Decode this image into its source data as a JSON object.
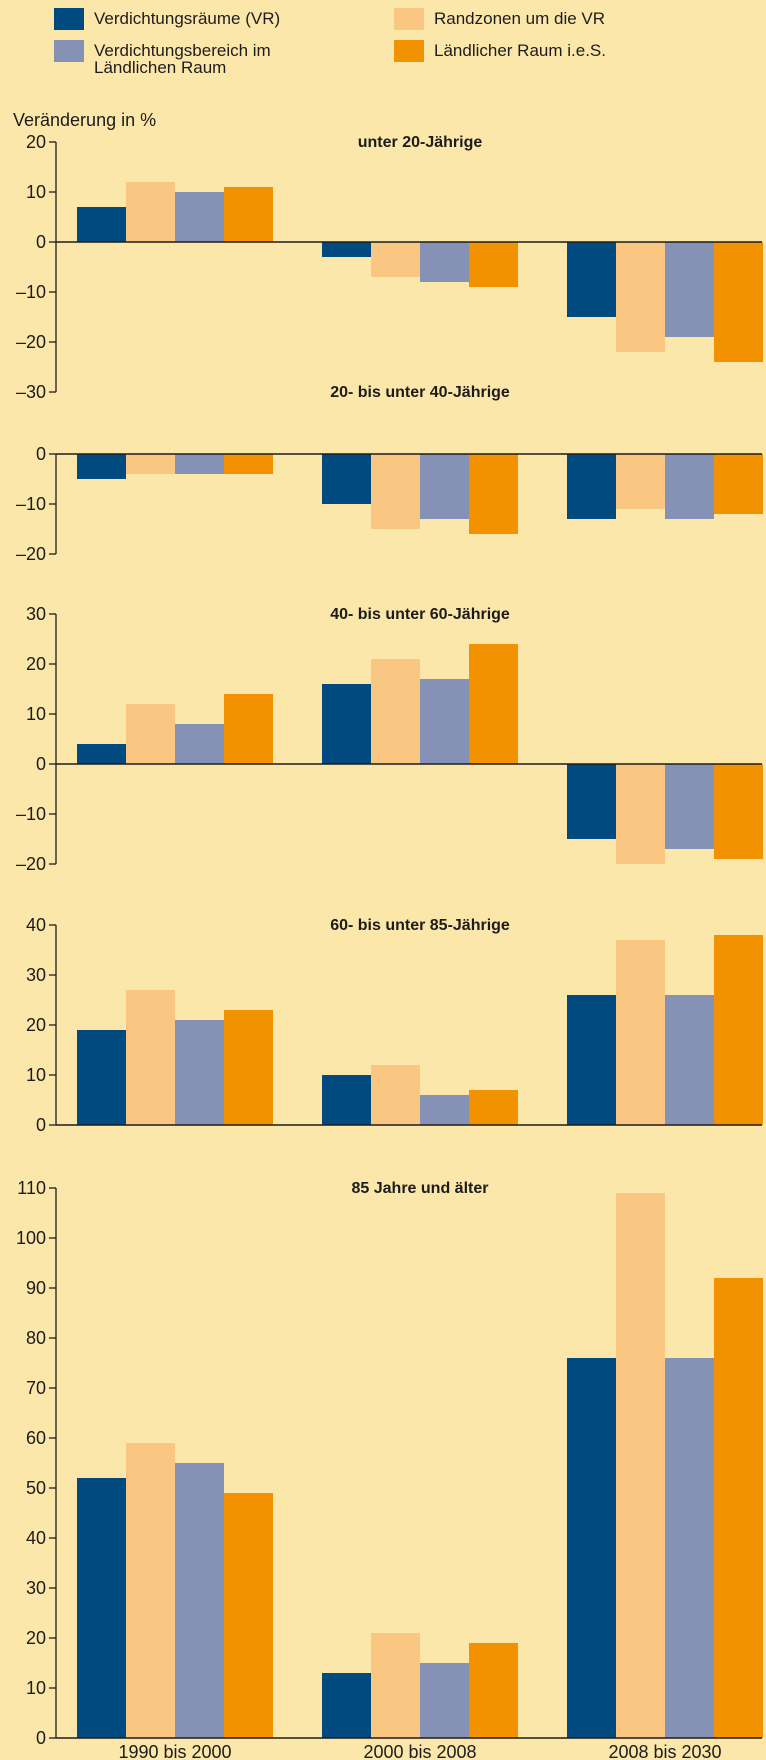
{
  "legend": [
    {
      "label": "Verdichtungsräume (VR)",
      "color": "#004a80"
    },
    {
      "label": "Randzonen um die VR",
      "color": "#fac783"
    },
    {
      "label": "Verdichtungsbereich im Ländlichen Raum",
      "color": "#8592b6"
    },
    {
      "label": "Ländlicher Raum i.e.S.",
      "color": "#f29200"
    }
  ],
  "ylabel": "Veränderung in %",
  "chart_data": [
    {
      "type": "bar",
      "title": "unter 20-Jährige",
      "categories": [
        "1990 bis 2000",
        "2000 bis 2008",
        "2008 bis 2030"
      ],
      "series": [
        {
          "name": "Verdichtungsräume (VR)",
          "values": [
            7,
            -3,
            -15
          ]
        },
        {
          "name": "Randzonen um die VR",
          "values": [
            12,
            -7,
            -22
          ]
        },
        {
          "name": "Verdichtungsbereich im Ländlichen Raum",
          "values": [
            10,
            -8,
            -19
          ]
        },
        {
          "name": "Ländlicher Raum i.e.S.",
          "values": [
            11,
            -9,
            -24
          ]
        }
      ],
      "ylabel": "Veränderung in %",
      "ylim": [
        -30,
        20
      ],
      "yticks": [
        20,
        10,
        0,
        -10,
        -20,
        -30
      ],
      "ytick_labels": [
        "20",
        "10",
        "0",
        "–10",
        "–20",
        "–30"
      ]
    },
    {
      "type": "bar",
      "title": "20- bis unter 40-Jährige",
      "categories": [
        "1990 bis 2000",
        "2000 bis 2008",
        "2008 bis 2030"
      ],
      "series": [
        {
          "name": "Verdichtungsräume (VR)",
          "values": [
            -5,
            -10,
            -13
          ]
        },
        {
          "name": "Randzonen um die VR",
          "values": [
            -4,
            -15,
            -11
          ]
        },
        {
          "name": "Verdichtungsbereich im Ländlichen Raum",
          "values": [
            -4,
            -13,
            -13
          ]
        },
        {
          "name": "Ländlicher Raum i.e.S.",
          "values": [
            -4,
            -16,
            -12
          ]
        }
      ],
      "ylim": [
        -20,
        0
      ],
      "yticks": [
        0,
        -10,
        -20
      ],
      "ytick_labels": [
        "0",
        "–10",
        "–20"
      ]
    },
    {
      "type": "bar",
      "title": "40- bis unter 60-Jährige",
      "categories": [
        "1990 bis 2000",
        "2000 bis 2008",
        "2008 bis 2030"
      ],
      "series": [
        {
          "name": "Verdichtungsräume (VR)",
          "values": [
            4,
            16,
            -15
          ]
        },
        {
          "name": "Randzonen um die VR",
          "values": [
            12,
            21,
            -20
          ]
        },
        {
          "name": "Verdichtungsbereich im Ländlichen Raum",
          "values": [
            8,
            17,
            -17
          ]
        },
        {
          "name": "Ländlicher Raum i.e.S.",
          "values": [
            14,
            24,
            -19
          ]
        }
      ],
      "ylim": [
        -20,
        30
      ],
      "yticks": [
        30,
        20,
        10,
        0,
        -10,
        -20
      ],
      "ytick_labels": [
        "30",
        "20",
        "10",
        "0",
        "–10",
        "–20"
      ]
    },
    {
      "type": "bar",
      "title": "60- bis unter 85-Jährige",
      "categories": [
        "1990 bis 2000",
        "2000 bis 2008",
        "2008 bis 2030"
      ],
      "series": [
        {
          "name": "Verdichtungsräume (VR)",
          "values": [
            19,
            10,
            26
          ]
        },
        {
          "name": "Randzonen um die VR",
          "values": [
            27,
            12,
            37
          ]
        },
        {
          "name": "Verdichtungsbereich im Ländlichen Raum",
          "values": [
            21,
            6,
            26
          ]
        },
        {
          "name": "Ländlicher Raum i.e.S.",
          "values": [
            23,
            7,
            38
          ]
        }
      ],
      "ylim": [
        0,
        40
      ],
      "yticks": [
        40,
        30,
        20,
        10,
        0
      ],
      "ytick_labels": [
        "40",
        "30",
        "20",
        "10",
        "0"
      ]
    },
    {
      "type": "bar",
      "title": "85 Jahre und älter",
      "categories": [
        "1990 bis 2000",
        "2000 bis 2008",
        "2008 bis 2030"
      ],
      "series": [
        {
          "name": "Verdichtungsräume (VR)",
          "values": [
            52,
            13,
            76
          ]
        },
        {
          "name": "Randzonen um die VR",
          "values": [
            59,
            21,
            109
          ]
        },
        {
          "name": "Verdichtungsbereich im Ländlichen Raum",
          "values": [
            55,
            15,
            76
          ]
        },
        {
          "name": "Ländlicher Raum i.e.S.",
          "values": [
            49,
            19,
            92
          ]
        }
      ],
      "ylim": [
        0,
        110
      ],
      "yticks": [
        110,
        100,
        90,
        80,
        70,
        60,
        50,
        40,
        30,
        20,
        10,
        0
      ],
      "ytick_labels": [
        "110",
        "100",
        "90",
        "80",
        "70",
        "60",
        "50",
        "40",
        "30",
        "20",
        "10",
        "0"
      ]
    }
  ]
}
